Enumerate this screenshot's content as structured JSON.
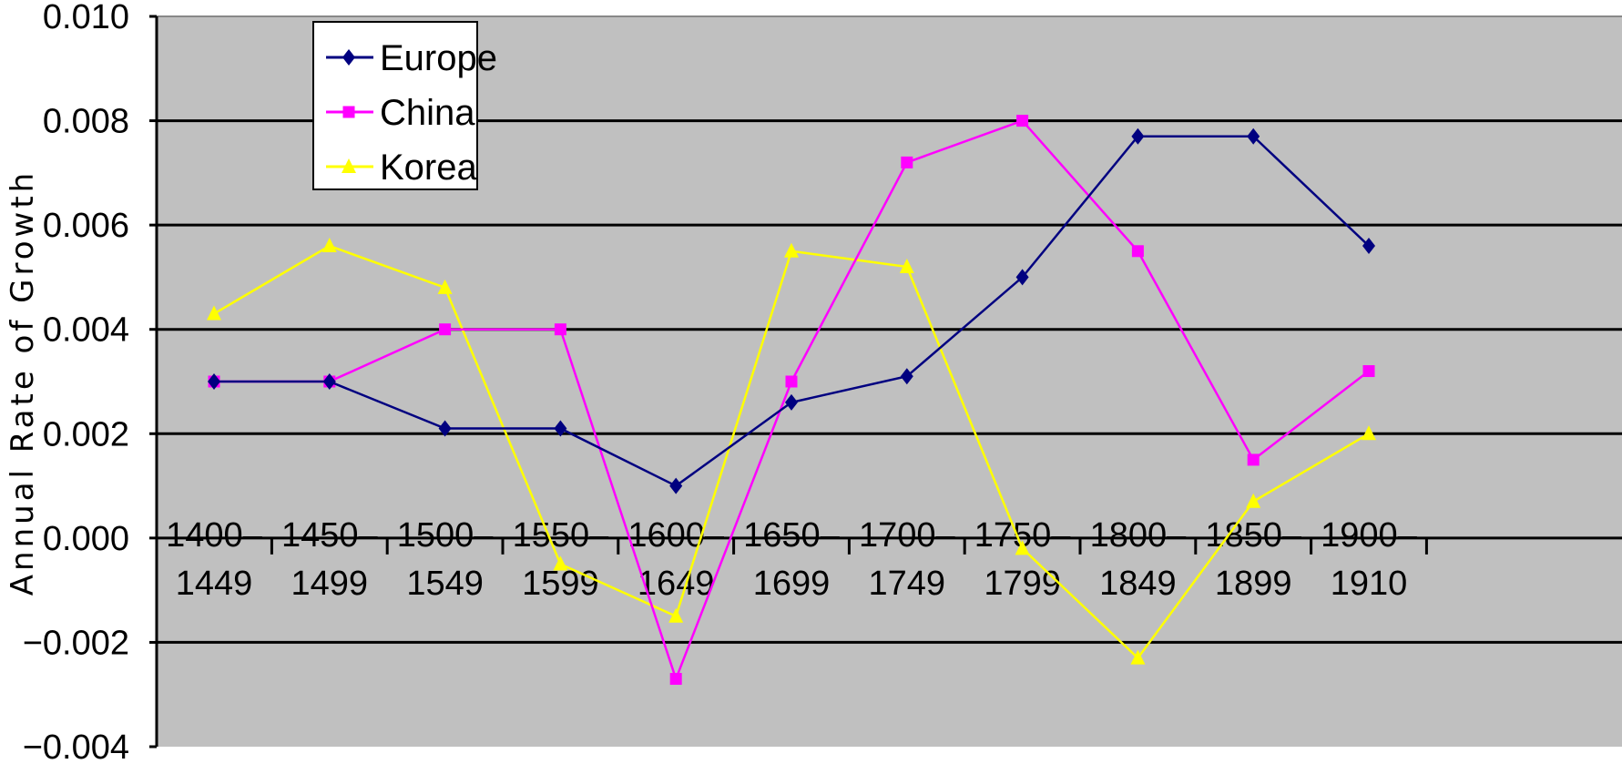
{
  "chart_data": {
    "type": "line",
    "title": "",
    "xlabel": "",
    "ylabel": "Annual Rate of Growth",
    "ylim": [
      -0.004,
      0.01
    ],
    "yticks": [
      "0.010",
      "0.008",
      "0.006",
      "0.004",
      "0.002",
      "0.000",
      "−0.002",
      "−0.004"
    ],
    "categories": [
      [
        "1400–",
        "1449"
      ],
      [
        "1450–",
        "1499"
      ],
      [
        "1500–",
        "1549"
      ],
      [
        "1550–",
        "1599"
      ],
      [
        "1600–",
        "1649"
      ],
      [
        "1650–",
        "1699"
      ],
      [
        "1700–",
        "1749"
      ],
      [
        "1750–",
        "1799"
      ],
      [
        "1800–",
        "1849"
      ],
      [
        "1850–",
        "1899"
      ],
      [
        "1900–",
        "1910"
      ]
    ],
    "grid": true,
    "legend_position": "top-left",
    "background": "#c0c0c0",
    "series": [
      {
        "name": "Europe",
        "color": "#000080",
        "marker": "diamond",
        "values": [
          0.003,
          0.003,
          0.0021,
          0.0021,
          0.001,
          0.0026,
          0.0031,
          0.005,
          0.0077,
          0.0077,
          0.0056
        ]
      },
      {
        "name": "China",
        "color": "#ff00ff",
        "marker": "square",
        "values": [
          0.003,
          0.003,
          0.004,
          0.004,
          -0.0027,
          0.003,
          0.0072,
          0.008,
          0.0055,
          0.0015,
          0.0032
        ]
      },
      {
        "name": "Korea",
        "color": "#ffff00",
        "marker": "triangle",
        "values": [
          0.0043,
          0.0056,
          0.0048,
          -0.0005,
          -0.0015,
          0.0055,
          0.0052,
          -0.0002,
          -0.0023,
          0.0007,
          0.002
        ]
      }
    ]
  }
}
